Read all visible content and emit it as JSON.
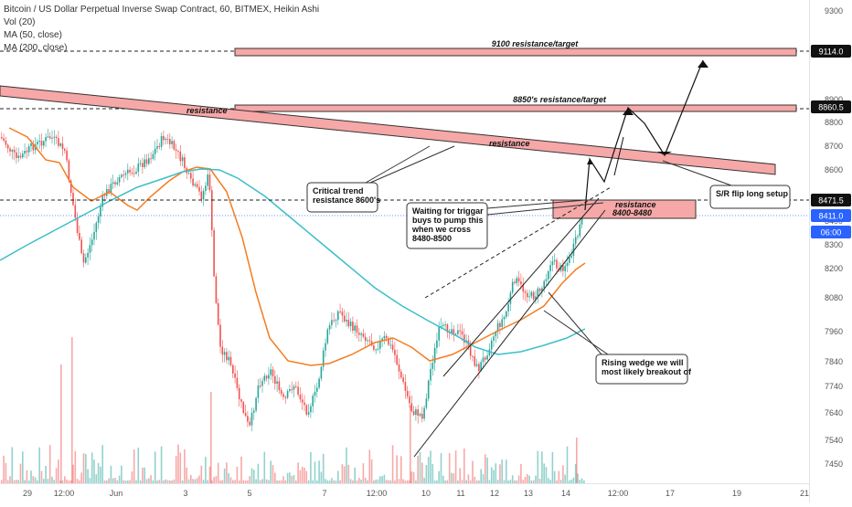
{
  "chart_data": {
    "type": "candlestick",
    "title": "Bitcoin / US Dollar Perpetual Inverse Swap Contract, 60, BITMEX, Heikin Ashi",
    "indicators": [
      "Vol (20)",
      "MA (50, close)",
      "MA (200, close)"
    ],
    "y_ticks": [
      9300,
      9000,
      8900,
      8800,
      8700,
      8600,
      8400,
      8300,
      8200,
      8080,
      7960,
      7840,
      7740,
      7640,
      7540,
      7450
    ],
    "x_ticks": [
      "29",
      "12:00",
      "Jun",
      "3",
      "5",
      "7",
      "12:00",
      "10",
      "11",
      "12",
      "13",
      "14",
      "12:00",
      "17",
      "19",
      "21"
    ],
    "price_labels": [
      {
        "value": "9114.0",
        "style": "dark"
      },
      {
        "value": "8860.5",
        "style": "dark"
      },
      {
        "value": "8471.5",
        "style": "dark"
      },
      {
        "value": "8411.0",
        "style": "current"
      },
      {
        "value": "06:00",
        "style": "current"
      }
    ],
    "annotations": {
      "res_9100": "9100 resistance/target",
      "res_8850": "8850's resistance/target",
      "resistance_top": "resistance",
      "resistance_mid": "resistance",
      "critical": [
        "Critical trend",
        "resistance 8600's"
      ],
      "waiting": [
        "Waiting for triggar",
        "buys to pump this",
        "when we cross",
        "8480-8500"
      ],
      "res_box": [
        "resistance",
        "8400-8480"
      ],
      "sr_flip": "S/R flip long setup",
      "wedge": [
        "Rising wedge we will",
        "most likely breakout of"
      ]
    },
    "colors": {
      "up": "#26a69a",
      "down": "#ef5350",
      "ma50": "#f57c20",
      "ma200": "#3cbfc8",
      "zone_fill": "#f6a7a7",
      "current_price": "#2962ff"
    }
  }
}
